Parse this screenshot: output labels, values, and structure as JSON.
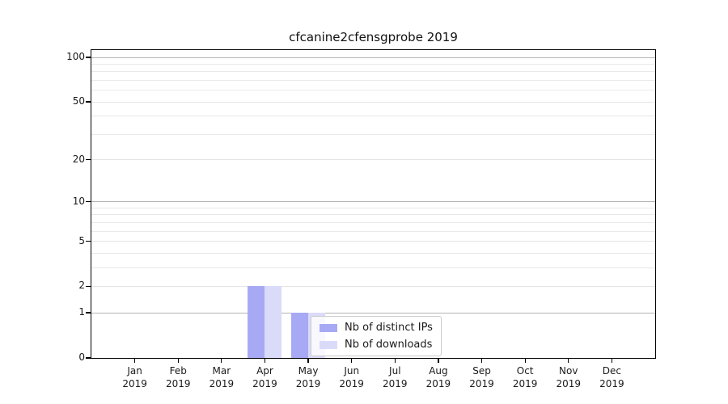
{
  "chart_data": {
    "type": "bar",
    "title": "cfcanine2cfensgprobe 2019",
    "categories": [
      "Jan",
      "Feb",
      "Mar",
      "Apr",
      "May",
      "Jun",
      "Jul",
      "Aug",
      "Sep",
      "Oct",
      "Nov",
      "Dec"
    ],
    "year": "2019",
    "xlabel": "",
    "ylabel": "",
    "series": [
      {
        "name": "Nb of distinct IPs",
        "color": "#a8a9f4",
        "values": [
          0,
          0,
          0,
          2,
          1,
          0,
          0,
          0,
          0,
          0,
          0,
          0
        ]
      },
      {
        "name": "Nb of downloads",
        "color": "#dadaf9",
        "values": [
          0,
          0,
          0,
          2,
          1,
          0,
          0,
          0,
          0,
          0,
          0,
          0
        ]
      }
    ],
    "y_scale": "log10(1+y)",
    "y_ticks": [
      0,
      1,
      2,
      5,
      10,
      20,
      50,
      100
    ],
    "y_minor_ticks": [
      3,
      4,
      6,
      7,
      8,
      9,
      30,
      40,
      60,
      70,
      80,
      90
    ],
    "y_decade_ticks": [
      1,
      10,
      100
    ],
    "ylim": [
      0,
      112
    ],
    "grid": true,
    "grid_color_major": "#b4b4b4",
    "grid_color_minor": "#e9e9e9",
    "legend_position": "inside lower center"
  },
  "legend": {
    "items": [
      {
        "label": "Nb of distinct IPs",
        "color": "#a8a9f4"
      },
      {
        "label": "Nb of downloads",
        "color": "#dadaf9"
      }
    ]
  }
}
